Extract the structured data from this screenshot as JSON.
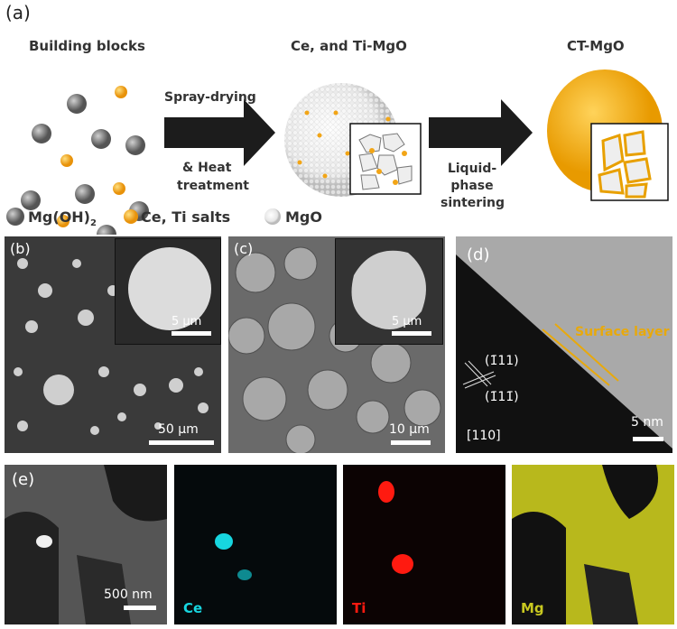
{
  "panel_a": {
    "label": "(a)",
    "stage1_title": "Building blocks",
    "stage2_title": "Ce, and Ti-MgO",
    "stage3_title": "CT-MgO",
    "arrow1_top": "Spray-drying",
    "arrow1_bottom_1": "& Heat",
    "arrow1_bottom_2": "treatment",
    "arrow2_1": "Liquid-",
    "arrow2_2": "phase",
    "arrow2_3": "sintering",
    "legend": {
      "mgoh2": "Mg(OH)",
      "mgoh2_sub": "2",
      "salts": "Ce, Ti salts",
      "mgo": "MgO"
    },
    "colors": {
      "mgoh2": "#7a7a7a",
      "salts": "#f2a516",
      "mgo": "#f0f0f0",
      "arrow": "#1c1c1c"
    }
  },
  "panel_b": {
    "label": "(b)",
    "inset_scale": "5 μm",
    "scale": "50 μm"
  },
  "panel_c": {
    "label": "(c)",
    "inset_scale": "5 μm",
    "scale": "10 μm"
  },
  "panel_d": {
    "label": "(d)",
    "surface": "Surface layer",
    "plane1": "(1̄11)",
    "plane2": "(1̄11̄)",
    "zone": "[110]",
    "scale": "5 nm",
    "surface_color": "#e8a90c"
  },
  "panel_e": {
    "label": "(e)",
    "scale": "500 nm",
    "ce": "Ce",
    "ti": "Ti",
    "mg": "Mg",
    "colors": {
      "ce": "#17d6e0",
      "ti": "#ff1a10",
      "mg": "#c8c820"
    }
  }
}
